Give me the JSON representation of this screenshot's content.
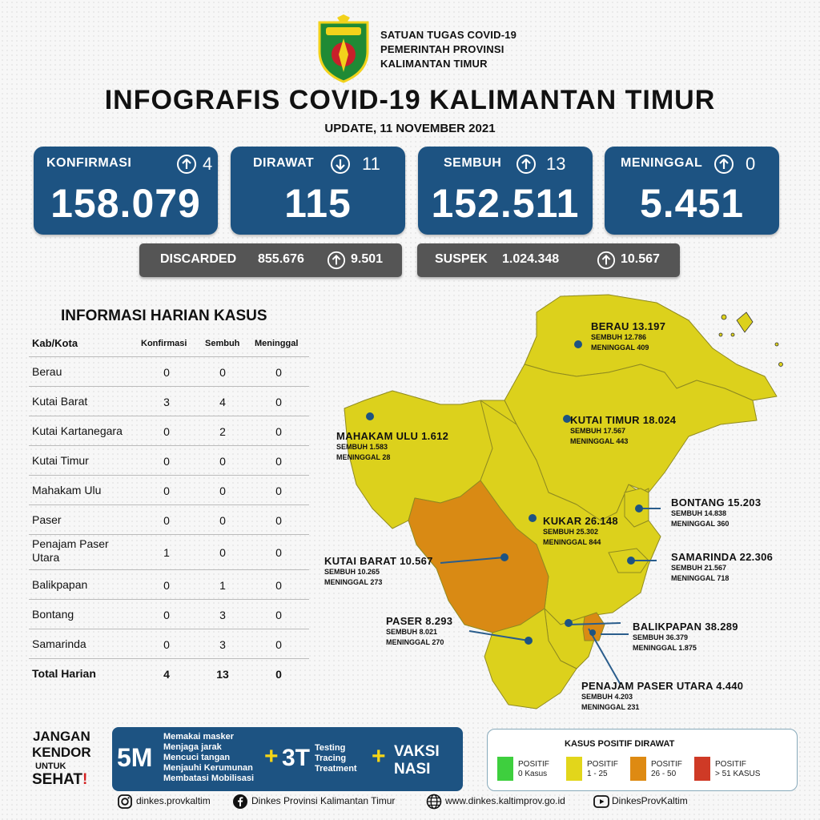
{
  "header": {
    "gov_lines": [
      "SATUAN TUGAS COVID-19",
      "PEMERINTAH PROVINSI",
      "KALIMANTAN TIMUR"
    ],
    "title": "INFOGRAFIS COVID-19 KALIMANTAN TIMUR",
    "update": "UPDATE, 11 NOVEMBER 2021"
  },
  "stats": {
    "konfirmasi": {
      "label": "KONFIRMASI",
      "delta": "4",
      "value": "158.079",
      "dir": "up"
    },
    "dirawat": {
      "label": "DIRAWAT",
      "delta": "11",
      "value": "115",
      "dir": "down"
    },
    "sembuh": {
      "label": "SEMBUH",
      "delta": "13",
      "value": "152.511",
      "dir": "up"
    },
    "meninggal": {
      "label": "MENINGGAL",
      "delta": "0",
      "value": "5.451",
      "dir": "up"
    }
  },
  "extra": {
    "discarded": {
      "label": "DISCARDED",
      "value": "855.676",
      "delta": "9.501"
    },
    "suspek": {
      "label": "SUSPEK",
      "value": "1.024.348",
      "delta": "10.567"
    }
  },
  "table": {
    "title": "INFORMASI HARIAN KASUS",
    "headers": [
      "Kab/Kota",
      "Konfirmasi",
      "Sembuh",
      "Meninggal"
    ],
    "rows": [
      {
        "name": "Berau",
        "k": "0",
        "s": "0",
        "m": "0"
      },
      {
        "name": "Kutai Barat",
        "k": "3",
        "s": "4",
        "m": "0"
      },
      {
        "name": "Kutai Kartanegara",
        "k": "0",
        "s": "2",
        "m": "0"
      },
      {
        "name": "Kutai Timur",
        "k": "0",
        "s": "0",
        "m": "0"
      },
      {
        "name": "Mahakam Ulu",
        "k": "0",
        "s": "0",
        "m": "0"
      },
      {
        "name": "Paser",
        "k": "0",
        "s": "0",
        "m": "0"
      },
      {
        "name": "Penajam Paser Utara",
        "k": "1",
        "s": "0",
        "m": "0"
      },
      {
        "name": "Balikpapan",
        "k": "0",
        "s": "1",
        "m": "0"
      },
      {
        "name": "Bontang",
        "k": "0",
        "s": "3",
        "m": "0"
      },
      {
        "name": "Samarinda",
        "k": "0",
        "s": "3",
        "m": "0"
      }
    ],
    "total": {
      "name": "Total Harian",
      "k": "4",
      "s": "13",
      "m": "0"
    }
  },
  "map": {
    "berau": {
      "name": "BERAU",
      "total": "13.197",
      "sembuh": "SEMBUH 12.786",
      "meninggal": "MENINGGAL 409"
    },
    "kutai_timur": {
      "name": "KUTAI TIMUR",
      "total": "18.024",
      "sembuh": "SEMBUH 17.567",
      "meninggal": "MENINGGAL 443"
    },
    "mahakam_ulu": {
      "name": "MAHAKAM ULU",
      "total": "1.612",
      "sembuh": "SEMBUH 1.583",
      "meninggal": "MENINGGAL 28"
    },
    "bontang": {
      "name": "BONTANG",
      "total": "15.203",
      "sembuh": "SEMBUH 14.838",
      "meninggal": "MENINGGAL 360"
    },
    "kukar": {
      "name": "KUKAR",
      "total": "26.148",
      "sembuh": "SEMBUH 25.302",
      "meninggal": "MENINGGAL 844"
    },
    "samarinda": {
      "name": "SAMARINDA",
      "total": "22.306",
      "sembuh": "SEMBUH 21.567",
      "meninggal": "MENINGGAL 718"
    },
    "kutai_barat": {
      "name": "KUTAI BARAT",
      "total": "10.567",
      "sembuh": "SEMBUH 10.265",
      "meninggal": "MENINGGAL 273"
    },
    "paser": {
      "name": "PASER",
      "total": "8.293",
      "sembuh": "SEMBUH 8.021",
      "meninggal": "MENINGGAL 270"
    },
    "balikpapan": {
      "name": "BALIKPAPAN",
      "total": "38.289",
      "sembuh": "SEMBUH 36.379",
      "meninggal": "MENINGGAL 1.875"
    },
    "ppu": {
      "name": "PENAJAM PASER UTARA",
      "total": "4.440",
      "sembuh": "SEMBUH 4.203",
      "meninggal": "MENINGGAL 231"
    }
  },
  "campaign": {
    "jangan": [
      "JANGAN",
      "KENDOR"
    ],
    "untuk": "UNTUK",
    "sehat": "SEHAT",
    "m5": "5M",
    "m5_items": [
      "Memakai masker",
      "Menjaga jarak",
      "Mencuci tangan",
      "Menjauhi Kerumunan",
      "Membatasi Mobilisasi"
    ],
    "t3": "3T",
    "t3_items": [
      "Testing",
      "Tracing",
      "Treatment"
    ],
    "plus": "+",
    "vaksi": [
      "VAKSI",
      "NASI"
    ]
  },
  "legend": {
    "title": "KASUS POSITIF DIRAWAT",
    "items": [
      {
        "color": "#3ecf3e",
        "line1": "POSITIF",
        "line2": "0 Kasus"
      },
      {
        "color": "#e2d61b",
        "line1": "POSITIF",
        "line2": "1 - 25"
      },
      {
        "color": "#de8a12",
        "line1": "POSITIF",
        "line2": "26 - 50"
      },
      {
        "color": "#cf3a26",
        "line1": "POSITIF",
        "line2": "> 51 KASUS"
      }
    ]
  },
  "footer": {
    "instagram": "dinkes.provkaltim",
    "facebook": "Dinkes Provinsi Kalimantan Timur",
    "web": "www.dinkes.kaltimprov.go.id",
    "youtube": "DinkesProvKaltim"
  },
  "colors": {
    "navy": "#1d5382",
    "yellow": "#dcd11c",
    "orange": "#d98a14",
    "gray": "#555555"
  }
}
